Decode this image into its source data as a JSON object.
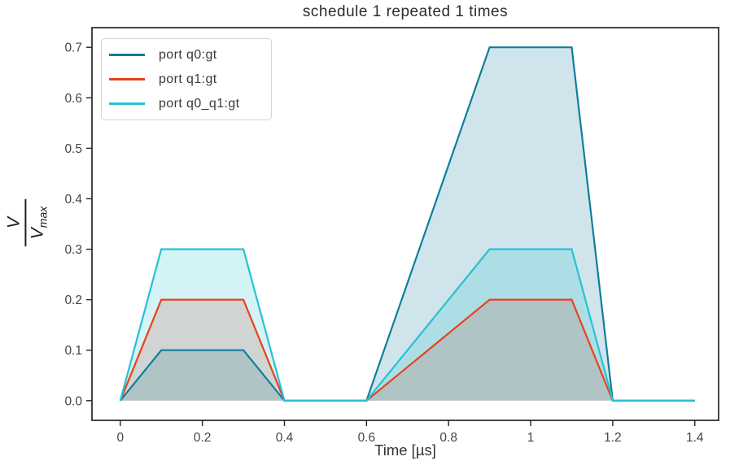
{
  "figure": {
    "ylabel": {
      "numerator": "V",
      "denominator": "V",
      "denominator_sub": "max"
    }
  },
  "chart_data": {
    "type": "line",
    "title": "schedule 1 repeated 1 times",
    "xlabel": "Time [µs]",
    "ylabel": "V/V_max",
    "xlim": [
      -0.069,
      1.458
    ],
    "ylim": [
      -0.039,
      0.739
    ],
    "grid": false,
    "legend_position": "upper left",
    "fill_alpha": 0.2,
    "line_width": 2.2,
    "xticks": {
      "values": [
        0,
        0.2,
        0.4,
        0.6,
        0.8,
        1,
        1.2,
        1.4
      ],
      "labels": [
        "0",
        "0.2",
        "0.4",
        "0.6",
        "0.8",
        "1",
        "1.2",
        "1.4"
      ]
    },
    "yticks": {
      "values": [
        0,
        0.1,
        0.2,
        0.3,
        0.4,
        0.5,
        0.6,
        0.7
      ],
      "labels": [
        "0.0",
        "0.1",
        "0.2",
        "0.3",
        "0.4",
        "0.5",
        "0.6",
        "0.7"
      ]
    },
    "series": [
      {
        "name": "port q0:gt",
        "color": "#0e7f9b",
        "points": [
          [
            0,
            0
          ],
          [
            0.1,
            0.1
          ],
          [
            0.3,
            0.1
          ],
          [
            0.4,
            0
          ],
          [
            0.6,
            0
          ],
          [
            0.9,
            0.7
          ],
          [
            1.1,
            0.7
          ],
          [
            1.2,
            0
          ],
          [
            1.4,
            0
          ]
        ]
      },
      {
        "name": "port q1:gt",
        "color": "#e8411c",
        "points": [
          [
            0,
            0
          ],
          [
            0.1,
            0.2
          ],
          [
            0.3,
            0.2
          ],
          [
            0.4,
            0
          ],
          [
            0.6,
            0
          ],
          [
            0.9,
            0.2
          ],
          [
            1.1,
            0.2
          ],
          [
            1.2,
            0
          ],
          [
            1.4,
            0
          ]
        ]
      },
      {
        "name": "port q0_q1:gt",
        "color": "#27c2d2",
        "points": [
          [
            0,
            0
          ],
          [
            0.1,
            0.3
          ],
          [
            0.3,
            0.3
          ],
          [
            0.4,
            0
          ],
          [
            0.6,
            0
          ],
          [
            0.9,
            0.3
          ],
          [
            1.1,
            0.3
          ],
          [
            1.2,
            0
          ],
          [
            1.4,
            0
          ]
        ]
      }
    ]
  }
}
